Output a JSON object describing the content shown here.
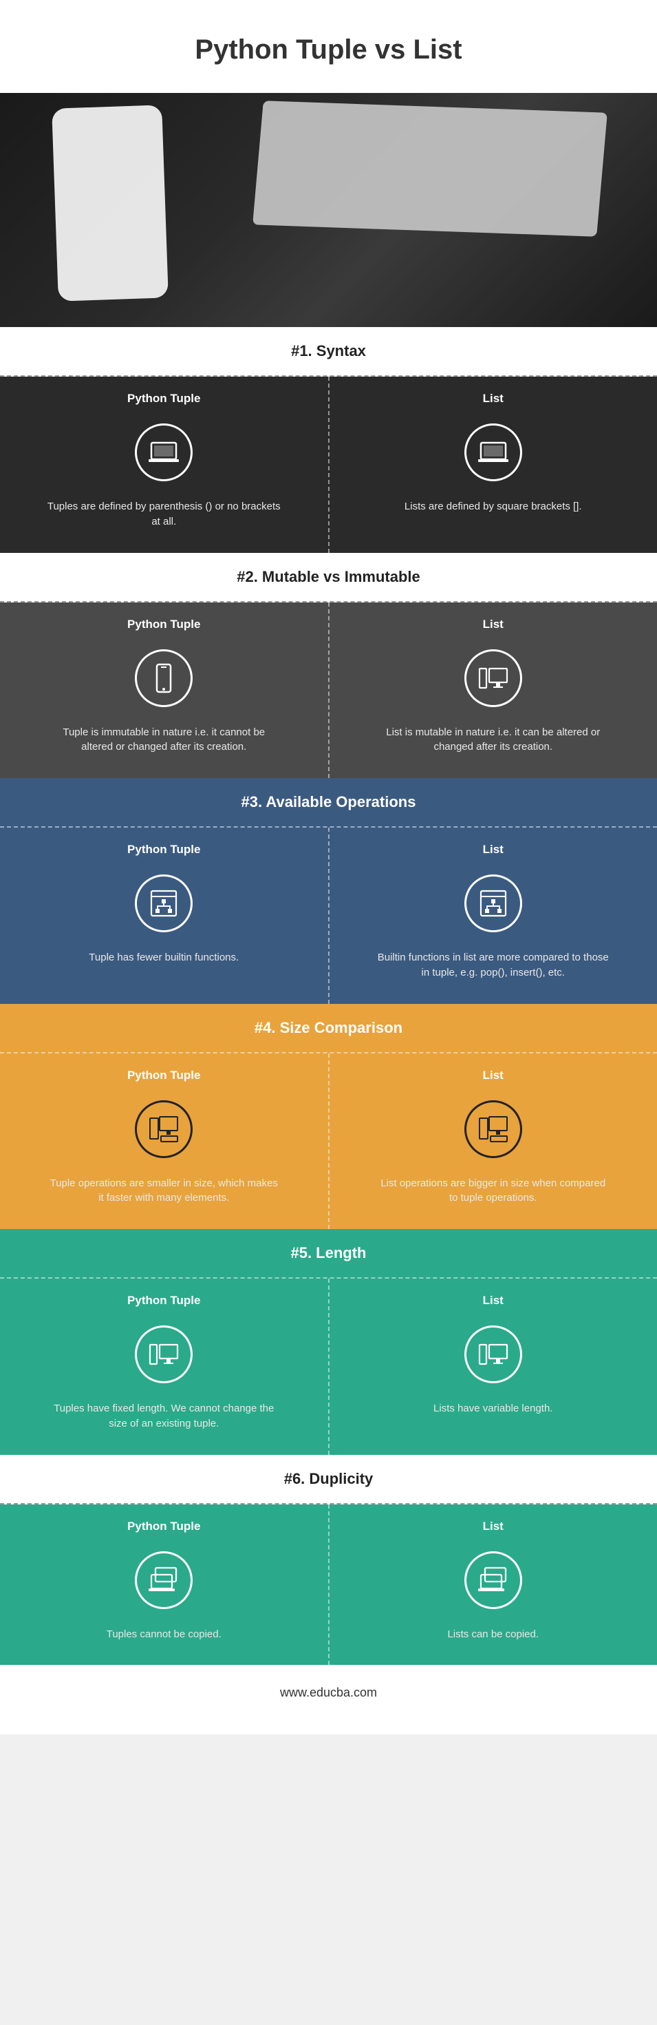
{
  "title": "Python Tuple vs List",
  "footer": "www.educba.com",
  "column_left_label": "Python Tuple",
  "column_right_label": "List",
  "sections": [
    {
      "heading": "#1. Syntax",
      "header_bg": "#ffffff",
      "header_dark_text": true,
      "row_bg": "#2a2a2a",
      "dark_text": false,
      "icon_border_dark": false,
      "icon_left": "laptop",
      "icon_right": "laptop",
      "left_text": "Tuples are defined by parenthesis () or no brackets at all.",
      "right_text": "Lists are defined by square brackets []."
    },
    {
      "heading": "#2. Mutable vs Immutable",
      "header_bg": "#ffffff",
      "header_dark_text": true,
      "row_bg": "#4a4a4a",
      "dark_text": false,
      "icon_border_dark": false,
      "icon_left": "phone",
      "icon_right": "desktop-pair",
      "left_text": "Tuple is immutable in nature i.e. it cannot be altered or changed after its creation.",
      "right_text": "List is mutable in nature i.e. it can be altered or changed after its creation."
    },
    {
      "heading": "#3. Available Operations",
      "header_bg": "#3b5a80",
      "header_dark_text": false,
      "row_bg": "#3b5a80",
      "dark_text": false,
      "icon_border_dark": false,
      "icon_left": "window-tree",
      "icon_right": "window-tree",
      "left_text": "Tuple has fewer builtin functions.",
      "right_text": "Builtin functions in list are more compared to those in tuple, e.g. pop(), insert(), etc."
    },
    {
      "heading": "#4. Size Comparison",
      "header_bg": "#e8a33d",
      "header_dark_text": false,
      "row_bg": "#e8a33d",
      "dark_text": false,
      "icon_border_dark": true,
      "icon_left": "devices",
      "icon_right": "devices",
      "left_text": "Tuple operations are smaller in size, which makes it faster with many elements.",
      "right_text": "List operations are bigger in size when compared to tuple operations."
    },
    {
      "heading": "#5. Length",
      "header_bg": "#2aaa8a",
      "header_dark_text": false,
      "row_bg": "#2aaa8a",
      "dark_text": false,
      "icon_border_dark": false,
      "icon_left": "desktop-pair",
      "icon_right": "desktop-pair",
      "left_text": "Tuples have fixed length. We cannot change the size of an existing tuple.",
      "right_text": "Lists have variable length."
    },
    {
      "heading": "#6. Duplicity",
      "header_bg": "#ffffff",
      "header_dark_text": true,
      "row_bg": "#2aaa8a",
      "dark_text": false,
      "icon_border_dark": false,
      "icon_left": "laptops-stack",
      "icon_right": "laptops-stack",
      "left_text": "Tuples cannot be copied.",
      "right_text": "Lists can be copied."
    }
  ]
}
